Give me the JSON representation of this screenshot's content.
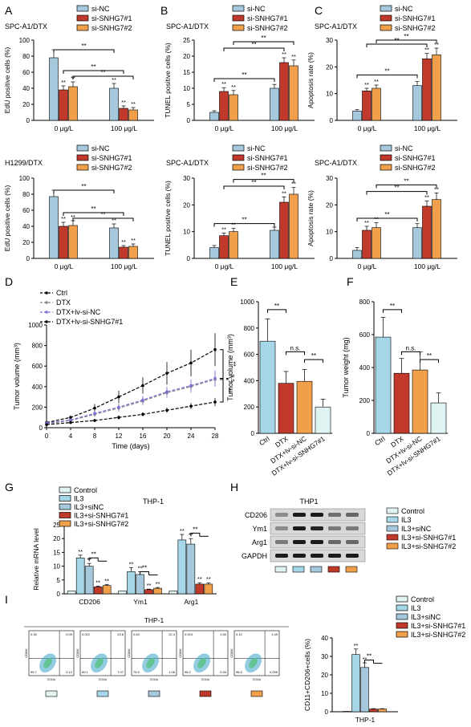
{
  "colors": {
    "ctrl_light": "#a6d7e8",
    "si_nc": "#a6c8dc",
    "sh1": "#c0392b",
    "sh2": "#f0a04b",
    "control_pale": "#dff3f2",
    "ink": "#000000",
    "purple": "#7b6fd6"
  },
  "panels": {
    "A": "A",
    "B": "B",
    "C": "C",
    "D": "D",
    "E": "E",
    "F": "F",
    "G": "G",
    "H": "H",
    "I": "I"
  },
  "texts": {
    "sig": "**",
    "ns": "n.s."
  },
  "chart_data": [
    {
      "id": "A1",
      "panel": "A",
      "type": "bar",
      "title": "SPC-A1/DTX",
      "ylabel": "EdU positive cells (%)",
      "ylim": [
        0,
        100
      ],
      "yticks": [
        0,
        20,
        40,
        60,
        80,
        100
      ],
      "categories": [
        "0 μg/L",
        "100 μg/L"
      ],
      "series": [
        {
          "name": "si-NC",
          "values": [
            78,
            40
          ],
          "err": [
            10,
            6
          ]
        },
        {
          "name": "si-SNHG7#1",
          "values": [
            38,
            15
          ],
          "err": [
            5,
            3
          ]
        },
        {
          "name": "si-SNHG7#2",
          "values": [
            42,
            13
          ],
          "err": [
            6,
            3
          ]
        }
      ]
    },
    {
      "id": "A2",
      "panel": "A",
      "type": "bar",
      "title": "H1299/DTX",
      "ylabel": "EdU positive cells (%)",
      "ylim": [
        0,
        100
      ],
      "yticks": [
        0,
        20,
        40,
        60,
        80,
        100
      ],
      "categories": [
        "0 μg/L",
        "100 μg/L"
      ],
      "series": [
        {
          "name": "si-NC",
          "values": [
            77,
            38
          ],
          "err": [
            8,
            5
          ]
        },
        {
          "name": "si-SNHG7#1",
          "values": [
            40,
            14
          ],
          "err": [
            5,
            2
          ]
        },
        {
          "name": "si-SNHG7#2",
          "values": [
            41,
            15
          ],
          "err": [
            6,
            3
          ]
        }
      ]
    },
    {
      "id": "B1",
      "panel": "B",
      "type": "bar",
      "title": "SPC-A1/DTX",
      "ylabel": "TUNEL positive cells (%)",
      "ylim": [
        0,
        25
      ],
      "yticks": [
        0,
        5,
        10,
        15,
        20,
        25
      ],
      "categories": [
        "0 μg/L",
        "100 μg/L"
      ],
      "series": [
        {
          "name": "si-NC",
          "values": [
            2.5,
            10
          ],
          "err": [
            0.5,
            1.2
          ]
        },
        {
          "name": "si-SNHG7#1",
          "values": [
            9,
            18
          ],
          "err": [
            1.2,
            1.5
          ]
        },
        {
          "name": "si-SNHG7#2",
          "values": [
            8,
            17
          ],
          "err": [
            1.3,
            1.8
          ]
        }
      ]
    },
    {
      "id": "B2",
      "panel": "B",
      "type": "bar",
      "title": "SPC-A1/DTX",
      "ylabel": "TUNEL positive cells (%)",
      "ylim": [
        0,
        30
      ],
      "yticks": [
        0,
        10,
        20,
        30
      ],
      "categories": [
        "0 μg/L",
        "100 μg/L"
      ],
      "series": [
        {
          "name": "si-NC",
          "values": [
            4,
            10.5
          ],
          "err": [
            0.8,
            1.2
          ]
        },
        {
          "name": "si-SNHG7#1",
          "values": [
            8.5,
            21
          ],
          "err": [
            1,
            2
          ]
        },
        {
          "name": "si-SNHG7#2",
          "values": [
            10,
            24
          ],
          "err": [
            1.2,
            2.5
          ]
        }
      ]
    },
    {
      "id": "C1",
      "panel": "C",
      "type": "bar",
      "title": "SPC-A1/DTX",
      "ylabel": "Apoptosis rate (%)",
      "ylim": [
        0,
        30
      ],
      "yticks": [
        0,
        10,
        20,
        30
      ],
      "categories": [
        "0 μg/L",
        "100 μg/L"
      ],
      "series": [
        {
          "name": "si-NC",
          "values": [
            3.5,
            13
          ],
          "err": [
            0.5,
            1.5
          ]
        },
        {
          "name": "si-SNHG7#1",
          "values": [
            11,
            23
          ],
          "err": [
            1,
            2
          ]
        },
        {
          "name": "si-SNHG7#2",
          "values": [
            12,
            24.5
          ],
          "err": [
            1.2,
            2.5
          ]
        }
      ]
    },
    {
      "id": "C2",
      "panel": "C",
      "type": "bar",
      "title": "SPC-A1/DTX",
      "ylabel": "Apoptosis rate (%)",
      "ylim": [
        0,
        30
      ],
      "yticks": [
        0,
        10,
        20,
        30
      ],
      "categories": [
        "0 μg/L",
        "100 μg/L"
      ],
      "series": [
        {
          "name": "si-NC",
          "values": [
            3,
            11.5
          ],
          "err": [
            1,
            1.5
          ]
        },
        {
          "name": "si-SNHG7#1",
          "values": [
            10.5,
            19.5
          ],
          "err": [
            1.5,
            2
          ]
        },
        {
          "name": "si-SNHG7#2",
          "values": [
            11.5,
            22
          ],
          "err": [
            1.8,
            2.5
          ]
        }
      ]
    },
    {
      "id": "D",
      "panel": "D",
      "type": "line",
      "xlabel": "Time (days)",
      "ylabel": "Tumor volume (mm³)",
      "xlim": [
        0,
        28
      ],
      "ylim": [
        0,
        1000
      ],
      "xticks": [
        0,
        4,
        8,
        12,
        16,
        20,
        24,
        28
      ],
      "yticks": [
        0,
        200,
        400,
        600,
        800,
        1000
      ],
      "x": [
        0,
        4,
        8,
        12,
        16,
        20,
        24,
        28
      ],
      "series": [
        {
          "name": "Ctrl",
          "values": [
            50,
            100,
            190,
            300,
            410,
            530,
            630,
            760
          ],
          "err": [
            10,
            20,
            40,
            60,
            80,
            110,
            130,
            160
          ]
        },
        {
          "name": "DTX",
          "values": [
            40,
            70,
            130,
            190,
            260,
            340,
            400,
            470
          ],
          "err": [
            8,
            15,
            25,
            35,
            40,
            50,
            60,
            70
          ]
        },
        {
          "name": "DTX+lv-si-NC",
          "values": [
            45,
            75,
            140,
            200,
            270,
            350,
            410,
            480
          ],
          "err": [
            8,
            15,
            25,
            35,
            40,
            50,
            60,
            80
          ]
        },
        {
          "name": "DTX+lv-si-SNHG7#1",
          "values": [
            30,
            50,
            70,
            100,
            130,
            170,
            210,
            250
          ],
          "err": [
            5,
            10,
            15,
            20,
            20,
            25,
            30,
            40
          ]
        }
      ],
      "annotations": [
        "**",
        "n.s.",
        "**"
      ]
    },
    {
      "id": "E",
      "panel": "E",
      "type": "bar",
      "ylabel": "Tumor volume (mm³)",
      "ylim": [
        0,
        1000
      ],
      "yticks": [
        0,
        200,
        400,
        600,
        800,
        1000
      ],
      "categories": [
        "Ctrl",
        "DTX",
        "DTX+lv-si-NC",
        "DTX+lv-si-SNHG7#1"
      ],
      "values": [
        700,
        380,
        395,
        200
      ],
      "err": [
        170,
        90,
        90,
        60
      ]
    },
    {
      "id": "F",
      "panel": "F",
      "type": "bar",
      "ylabel": "Tumor weight (mg)",
      "ylim": [
        0,
        800
      ],
      "yticks": [
        0,
        200,
        400,
        600,
        800
      ],
      "categories": [
        "Ctrl",
        "DTX",
        "DTX+lv-si-NC",
        "DTX+lv-si-SNHG7#1"
      ],
      "values": [
        585,
        365,
        385,
        185
      ],
      "err": [
        120,
        90,
        110,
        60
      ]
    },
    {
      "id": "G",
      "panel": "G",
      "type": "bar",
      "title": "THP-1",
      "ylabel": "Relative mRNA level",
      "ylim": [
        0,
        25
      ],
      "yticks": [
        0,
        5,
        10,
        15,
        20,
        25
      ],
      "categories": [
        "CD206",
        "Ym1",
        "Arg1"
      ],
      "series": [
        {
          "name": "Control",
          "values": [
            1,
            1,
            1
          ],
          "err": [
            0,
            0,
            0
          ]
        },
        {
          "name": "IL3",
          "values": [
            13,
            8,
            19.5
          ],
          "err": [
            1,
            1.5,
            2
          ]
        },
        {
          "name": "IL3+siNC",
          "values": [
            10,
            7,
            18
          ],
          "err": [
            1,
            1,
            2
          ]
        },
        {
          "name": "IL3+si-SNHG7#1",
          "values": [
            2.5,
            1.5,
            3.5
          ],
          "err": [
            0.3,
            0.2,
            0.5
          ]
        },
        {
          "name": "IL3+si-SNHG7#2",
          "values": [
            3,
            2,
            3.5
          ],
          "err": [
            0.4,
            0.3,
            0.5
          ]
        }
      ]
    },
    {
      "id": "I",
      "panel": "I",
      "type": "bar",
      "ylabel": "CD11+CD206+cells (%)",
      "ylim": [
        0,
        40
      ],
      "yticks": [
        0,
        10,
        20,
        30,
        40
      ],
      "categories": [
        "THP-1"
      ],
      "series": [
        {
          "name": "Control",
          "values": [
            0.2
          ],
          "err": [
            0
          ]
        },
        {
          "name": "IL3",
          "values": [
            31
          ],
          "err": [
            3
          ]
        },
        {
          "name": "IL3+siNC",
          "values": [
            24
          ],
          "err": [
            2.5
          ]
        },
        {
          "name": "IL3+si-SNHG7#1",
          "values": [
            1.5
          ],
          "err": [
            0.2
          ]
        },
        {
          "name": "IL3+si-SNHG7#2",
          "values": [
            1.5
          ],
          "err": [
            0.2
          ]
        }
      ]
    }
  ],
  "western": {
    "title": "THP1",
    "rows": [
      "CD206",
      "Ym1",
      "Arg1",
      "GAPDH"
    ],
    "legend": [
      "Control",
      "IL3",
      "IL3+siNC",
      "IL3+si-SNHG7#1",
      "IL3+si-SNHG7#2"
    ]
  },
  "flow": {
    "title": "THP-1",
    "axis_x": "CD11b",
    "axis_y": "CD206",
    "plots": [
      {
        "q1": "0.18",
        "q2": "0.09",
        "q3": "99.7",
        "q4": "0.12"
      },
      {
        "q1": "0.012",
        "q2": "23.8",
        "q3": "69.1",
        "q4": "7.07"
      },
      {
        "q1": "0.63",
        "q2": "22.4",
        "q3": "75.9",
        "q4": "1.06"
      },
      {
        "q1": "0.024",
        "q2": "1.50",
        "q3": "98.2",
        "q4": "0.34"
      },
      {
        "q1": "0.12",
        "q2": "1.49",
        "q3": "98.3",
        "q4": "0.095"
      }
    ]
  }
}
